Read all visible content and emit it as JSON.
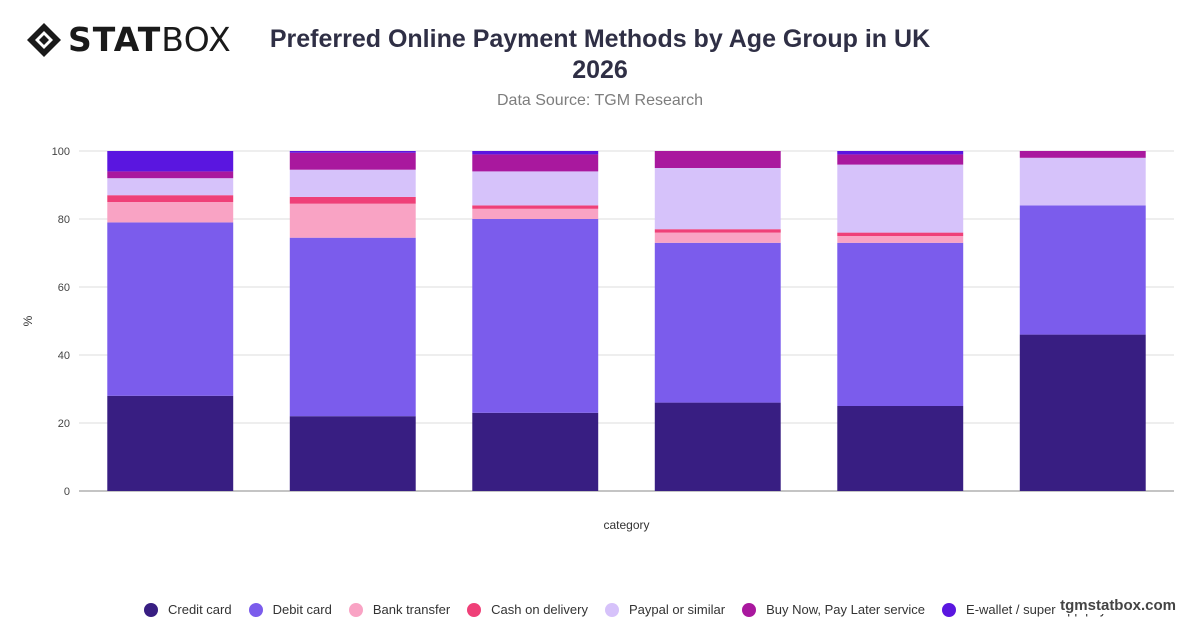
{
  "brand": {
    "logo_stat": "STAT",
    "logo_box": "BOX",
    "footer": "tgmstatbox.com"
  },
  "header": {
    "title_line1": "Preferred Online Payment Methods by Age Group in UK",
    "title_line2": "2026",
    "subtitle": "Data Source: TGM Research"
  },
  "chart_data": {
    "type": "bar",
    "stacked": true,
    "title": "Preferred Online Payment Methods by Age Group in UK 2026",
    "subtitle": "Data Source: TGM Research",
    "xlabel": "category",
    "ylabel": "%",
    "ylim": [
      0,
      100
    ],
    "yticks": [
      0,
      20,
      40,
      60,
      80,
      100
    ],
    "grid": true,
    "legend_position": "bottom",
    "categories": [
      "",
      "",
      "",
      "",
      "",
      ""
    ],
    "series": [
      {
        "name": "Credit card",
        "color": "#381e82",
        "values": [
          28,
          22,
          23,
          26,
          25,
          46
        ]
      },
      {
        "name": "Debit card",
        "color": "#7b5cec",
        "values": [
          51,
          52.5,
          57,
          47,
          48,
          38
        ]
      },
      {
        "name": "Bank transfer",
        "color": "#f9a3c4",
        "values": [
          6,
          10,
          3,
          3,
          2,
          0
        ]
      },
      {
        "name": "Cash on delivery",
        "color": "#ef4078",
        "values": [
          2,
          2,
          1,
          1,
          1,
          0
        ]
      },
      {
        "name": "Paypal or similar",
        "color": "#d6c2fa",
        "values": [
          5,
          8,
          10,
          18,
          20,
          14
        ]
      },
      {
        "name": "Buy Now, Pay Later service",
        "color": "#a9189e",
        "values": [
          2,
          5,
          5,
          5,
          3,
          2
        ]
      },
      {
        "name": "E-wallet / super-app pay",
        "color": "#5a16e0",
        "values": [
          6,
          0.5,
          1,
          0,
          1,
          0
        ]
      }
    ]
  }
}
